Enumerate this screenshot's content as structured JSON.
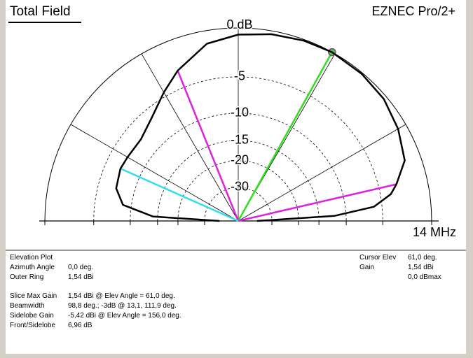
{
  "chart_data": {
    "type": "polar-elevation",
    "title": "Total Field",
    "program": "EZNEC Pro/2+",
    "frequency": "14 MHz",
    "scale": "arrl-log",
    "rlim": [
      -40,
      0
    ],
    "rticks": [
      {
        "value": 0,
        "label": "0 dB"
      },
      -5,
      -10,
      -15,
      -20,
      -30
    ],
    "angle_grid": [
      30,
      60,
      90,
      120,
      150
    ],
    "series": [
      {
        "color": "#000000",
        "x": [
          0,
          3,
          6,
          10,
          13.1,
          20,
          30,
          40,
          50,
          61,
          70,
          80,
          90,
          100,
          111.9,
          120,
          130,
          140,
          150,
          156,
          165,
          172,
          177,
          180
        ],
        "values": [
          -40,
          -12,
          -6,
          -3.8,
          -3,
          -1.5,
          -0.8,
          -0.3,
          -0.1,
          0,
          -0.1,
          -0.3,
          -0.6,
          -1.2,
          -3,
          -4.5,
          -6.2,
          -7.2,
          -7.1,
          -6.96,
          -7.3,
          -8.7,
          -14,
          -40
        ]
      }
    ],
    "markers": [
      {
        "angle": 61,
        "color": "#33dd22",
        "dot": true
      },
      {
        "angle": 13.1,
        "color": "#dd22dd"
      },
      {
        "angle": 111.9,
        "color": "#dd22dd"
      },
      {
        "angle": 156,
        "color": "#33ddee"
      }
    ]
  },
  "info": {
    "header": "Elevation Plot",
    "rows1": [
      {
        "label": "Azimuth Angle",
        "value": "0,0 deg."
      },
      {
        "label": "Outer Ring",
        "value": "1,54 dBi"
      }
    ],
    "rows2": [
      {
        "label": "Slice Max Gain",
        "value": "1,54 dBi @ Elev Angle = 61,0 deg."
      },
      {
        "label": "Beamwidth",
        "value": "98,8 deg.; -3dB @ 13,1, 111,9 deg."
      },
      {
        "label": "Sidelobe Gain",
        "value": "-5,42 dBi @ Elev Angle = 156,0 deg."
      },
      {
        "label": "Front/Sidelobe",
        "value": "6,96 dB"
      }
    ],
    "right": [
      {
        "label": "Cursor Elev",
        "value": "61,0 deg."
      },
      {
        "label": "Gain",
        "value": "1,54 dBi"
      },
      {
        "value": "0,0 dBmax"
      }
    ]
  }
}
